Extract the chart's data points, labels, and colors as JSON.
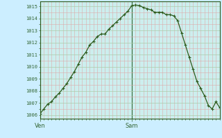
{
  "background_color": "#cceeff",
  "plot_bg_color": "#cceeee",
  "line_color": "#2d5a1b",
  "marker_color": "#2d5a1b",
  "grid_color_h": "#aaccaa",
  "grid_color_v": "#ddaaaa",
  "grid_color_major_x": "#336633",
  "tick_label_color": "#336633",
  "ylim": [
    1005.7,
    1015.4
  ],
  "yticks": [
    1006,
    1007,
    1008,
    1009,
    1010,
    1011,
    1012,
    1013,
    1014,
    1015
  ],
  "xtick_labels": [
    "Ven",
    "Sam"
  ],
  "xtick_positions": [
    0,
    24
  ],
  "total_hours": 47,
  "data_x": [
    0,
    1,
    2,
    3,
    4,
    5,
    6,
    7,
    8,
    9,
    10,
    11,
    12,
    13,
    14,
    15,
    16,
    17,
    18,
    19,
    20,
    21,
    22,
    23,
    24,
    25,
    26,
    27,
    28,
    29,
    30,
    31,
    32,
    33,
    34,
    35,
    36,
    37,
    38,
    39,
    40,
    41,
    42,
    43,
    44,
    45,
    46,
    47
  ],
  "data_y": [
    1006.1,
    1006.5,
    1006.9,
    1007.1,
    1007.5,
    1007.8,
    1008.2,
    1008.6,
    1009.1,
    1009.6,
    1010.2,
    1010.8,
    1011.2,
    1011.8,
    1012.1,
    1012.5,
    1012.7,
    1012.7,
    1013.1,
    1013.4,
    1013.7,
    1014.0,
    1014.3,
    1014.6,
    1015.05,
    1015.1,
    1015.05,
    1014.9,
    1014.8,
    1014.7,
    1014.5,
    1014.5,
    1014.5,
    1014.3,
    1014.3,
    1014.2,
    1013.8,
    1012.8,
    1011.8,
    1010.8,
    1009.8,
    1008.8,
    1008.2,
    1007.6,
    1006.8,
    1006.5,
    1007.1,
    1006.6
  ]
}
